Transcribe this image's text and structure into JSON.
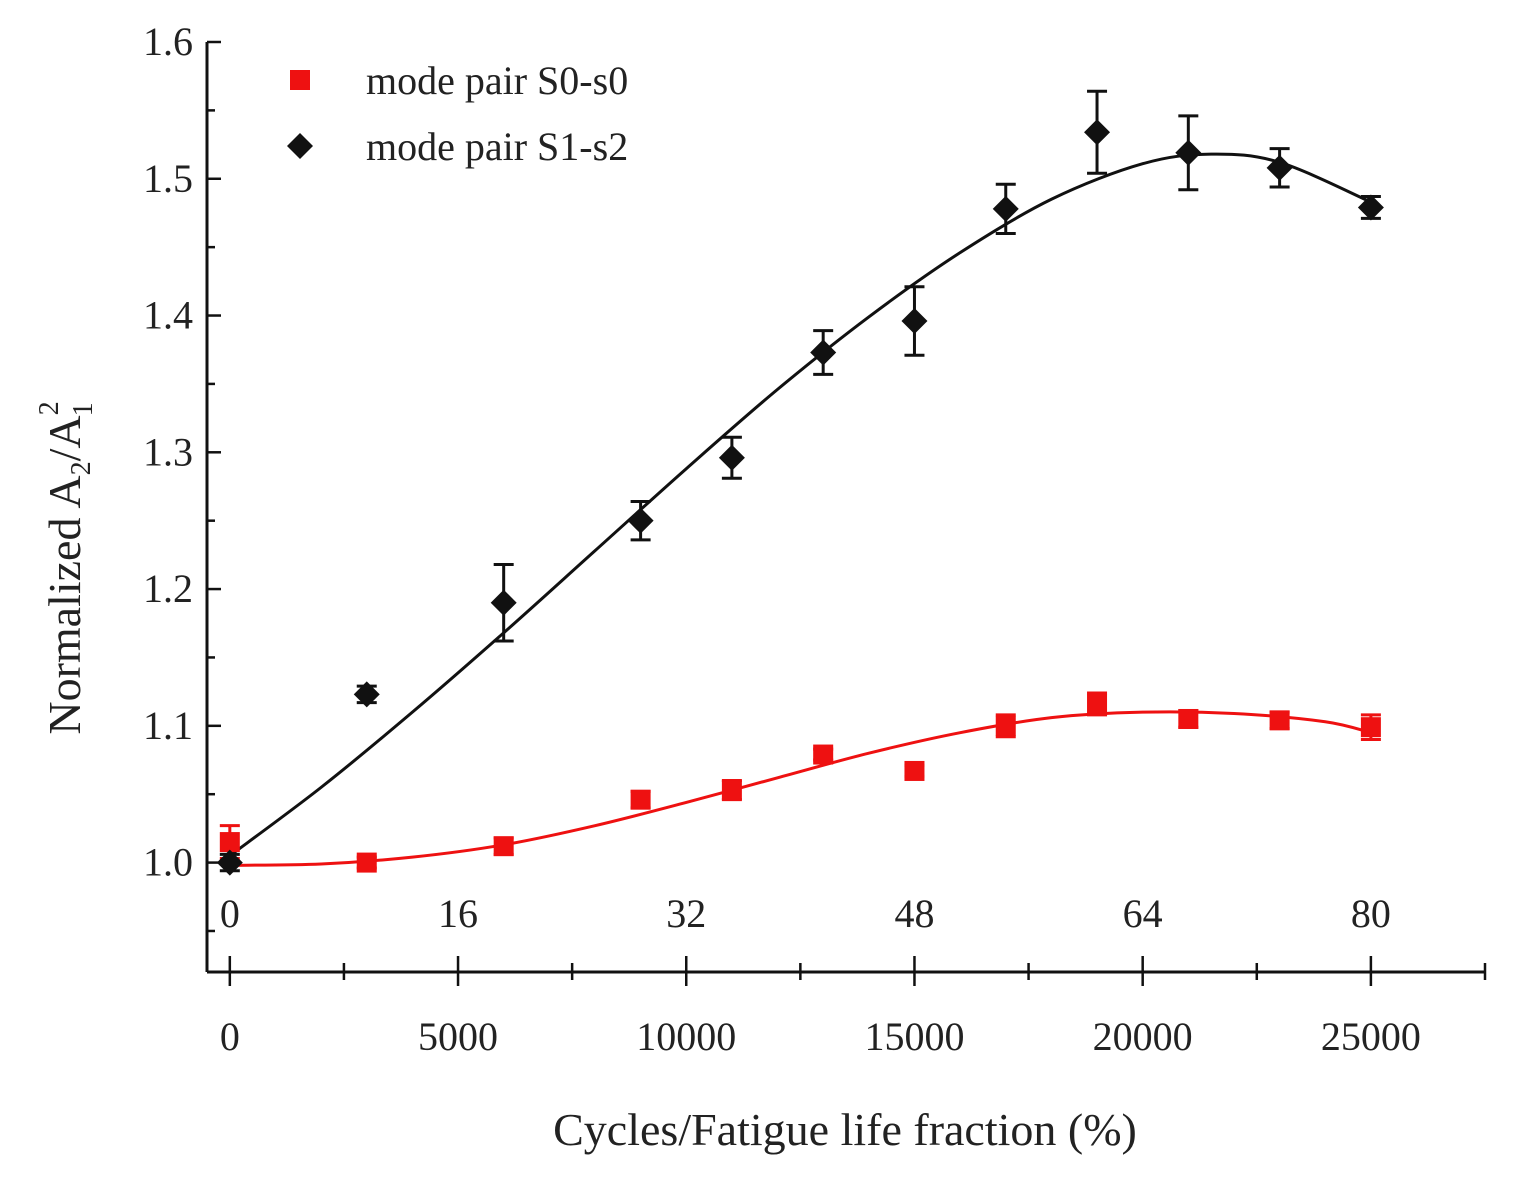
{
  "chart_data": {
    "type": "scatter",
    "title": "",
    "xlabel": "Cycles/Fatigue life fraction (%)",
    "ylabel": {
      "base": "Normalized A",
      "sub1": "2",
      "slash": "/A",
      "sub2": "1",
      "sup": "2"
    },
    "xlim": [
      -500,
      27500
    ],
    "ylim": [
      0.92,
      1.6
    ],
    "x_ticks": [
      0,
      5000,
      10000,
      15000,
      20000,
      25000
    ],
    "x_tick_labels": [
      "0",
      "5000",
      "10000",
      "15000",
      "20000",
      "25000"
    ],
    "x2_ticks_cycles": [
      0,
      5000,
      10000,
      15000,
      20000,
      25000
    ],
    "x2_tick_labels": [
      "0",
      "16",
      "32",
      "48",
      "64",
      "80"
    ],
    "y_ticks": [
      1.0,
      1.1,
      1.2,
      1.3,
      1.4,
      1.5,
      1.6
    ],
    "y_tick_labels": [
      "1.0",
      "1.1",
      "1.2",
      "1.3",
      "1.4",
      "1.5",
      "1.6"
    ],
    "legend_position": "top-left",
    "series": [
      {
        "name": "mode pair S0-s0",
        "marker": "square",
        "color": "#ee1111",
        "x": [
          0,
          3000,
          6000,
          9000,
          11000,
          13000,
          15000,
          17000,
          19000,
          21000,
          23000,
          25000
        ],
        "y": [
          1.015,
          1.0,
          1.012,
          1.046,
          1.053,
          1.079,
          1.067,
          1.1,
          1.116,
          1.105,
          1.104,
          1.099
        ],
        "err": [
          0.012,
          0.004,
          0.006,
          0.006,
          0.007,
          0.004,
          0.004,
          0.008,
          0.008,
          0.006,
          0.006,
          0.009
        ],
        "fit_x": [
          0,
          2000,
          4000,
          6000,
          8000,
          10000,
          12000,
          14000,
          16000,
          18000,
          20000,
          22000,
          24000,
          25000
        ],
        "fit_y": [
          0.998,
          0.999,
          1.004,
          1.013,
          1.027,
          1.044,
          1.062,
          1.08,
          1.095,
          1.106,
          1.11,
          1.109,
          1.103,
          1.095
        ]
      },
      {
        "name": "mode pair S1-s2",
        "marker": "diamond",
        "color": "#111111",
        "x": [
          0,
          3000,
          6000,
          9000,
          11000,
          13000,
          15000,
          17000,
          19000,
          21000,
          23000,
          25000
        ],
        "y": [
          1.0,
          1.123,
          1.19,
          1.25,
          1.296,
          1.373,
          1.396,
          1.478,
          1.534,
          1.519,
          1.508,
          1.479
        ],
        "err": [
          0.006,
          0.006,
          0.028,
          0.014,
          0.015,
          0.016,
          0.025,
          0.018,
          0.03,
          0.027,
          0.014,
          0.008
        ],
        "fit_x": [
          0,
          2000,
          4000,
          6000,
          8000,
          10000,
          12000,
          14000,
          16000,
          18000,
          20000,
          21500,
          23000,
          25000
        ],
        "fit_y": [
          1.005,
          1.055,
          1.11,
          1.168,
          1.228,
          1.288,
          1.346,
          1.399,
          1.446,
          1.485,
          1.511,
          1.518,
          1.512,
          1.483
        ]
      }
    ]
  }
}
